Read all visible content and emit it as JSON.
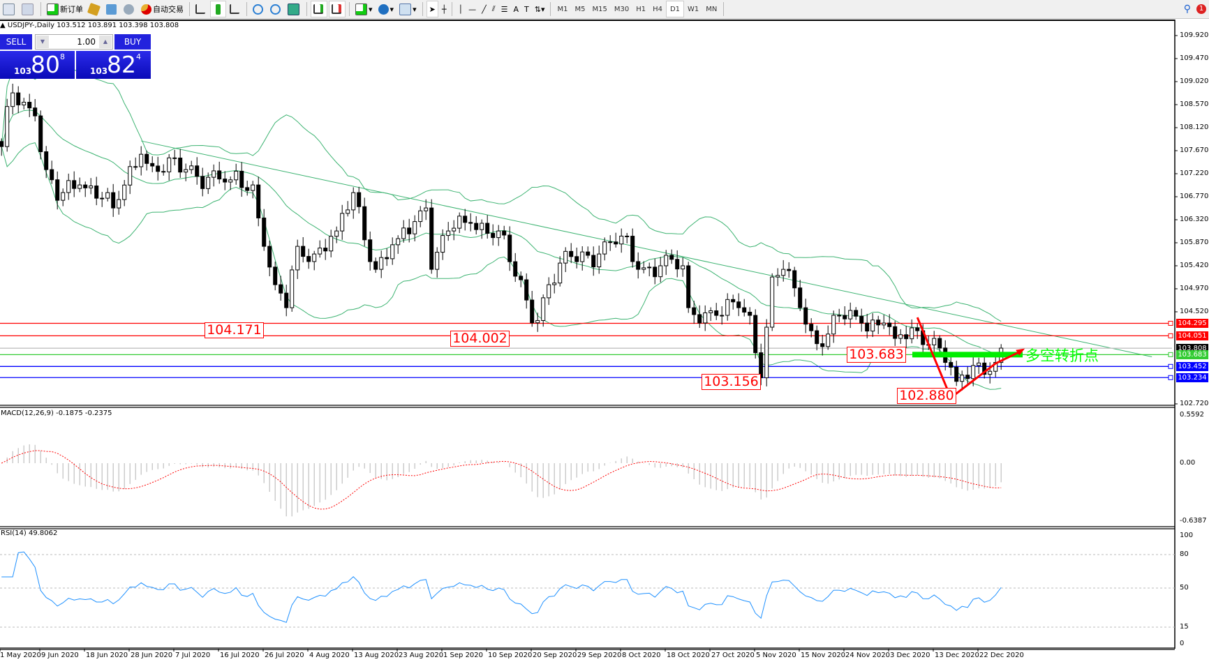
{
  "toolbar": {
    "new_order": "新订单",
    "auto_trading": "自动交易",
    "timeframes": [
      "M1",
      "M5",
      "M15",
      "M30",
      "H1",
      "H4",
      "D1",
      "W1",
      "MN"
    ],
    "active_timeframe": "D1",
    "notification_count": "1"
  },
  "chart": {
    "header": "USDJPY-,Daily  103.512 103.891 103.398 103.808",
    "macd_label": "MACD(12,26,9) -0.1875 -0.2375",
    "rsi_label": "RSI(14) 49.8062"
  },
  "one_click": {
    "sell_label": "SELL",
    "buy_label": "BUY",
    "volume": "1.00",
    "sell_big": "103",
    "sell_main": "80",
    "sell_small": "8",
    "buy_big": "103",
    "buy_main": "82",
    "buy_small": "4"
  },
  "colors": {
    "bands": "#3cb371",
    "trendline": "#3cb371",
    "red": "#ff0000",
    "blue": "#0000ff",
    "green_level": "#33cc33",
    "rsi": "#1e90ff",
    "macd_signal": "#ff0000",
    "macd_hist": "#c0c0c0",
    "annotation_text": "#00ff00"
  },
  "chart_data": {
    "type": "candlestick",
    "symbol": "USDJPY-",
    "timeframe": "Daily",
    "ylim": [
      102.72,
      110.2
    ],
    "price_ticks": [
      "109.920",
      "109.470",
      "109.020",
      "108.570",
      "108.120",
      "107.670",
      "107.220",
      "106.770",
      "106.320",
      "105.870",
      "105.420",
      "104.970",
      "104.520",
      "102.720"
    ],
    "date_ticks": [
      "1 May 2020",
      "9 Jun 2020",
      "18 Jun 2020",
      "28 Jun 2020",
      "7 Jul 2020",
      "16 Jul 2020",
      "26 Jul 2020",
      "4 Aug 2020",
      "13 Aug 2020",
      "23 Aug 2020",
      "1 Sep 2020",
      "10 Sep 2020",
      "20 Sep 2020",
      "29 Sep 2020",
      "8 Oct 2020",
      "18 Oct 2020",
      "27 Oct 2020",
      "5 Nov 2020",
      "15 Nov 2020",
      "24 Nov 2020",
      "3 Dec 2020",
      "13 Dec 2020",
      "22 Dec 2020"
    ],
    "bar_count": 180,
    "close_path": [
      [
        0,
        107.75
      ],
      [
        2,
        108.8
      ],
      [
        6,
        108.35
      ],
      [
        8,
        107.3
      ],
      [
        10,
        106.7
      ],
      [
        14,
        107.0
      ],
      [
        19,
        106.85
      ],
      [
        20,
        106.55
      ],
      [
        25,
        107.6
      ],
      [
        27,
        107.37
      ],
      [
        33,
        107.3
      ],
      [
        37,
        107.15
      ],
      [
        41,
        107.1
      ],
      [
        45,
        107.0
      ],
      [
        47,
        105.8
      ],
      [
        49,
        105.05
      ],
      [
        51,
        104.6
      ],
      [
        53,
        105.8
      ],
      [
        56,
        105.65
      ],
      [
        60,
        106.1
      ],
      [
        63,
        106.85
      ],
      [
        67,
        105.35
      ],
      [
        71,
        105.95
      ],
      [
        76,
        106.55
      ],
      [
        77,
        105.35
      ],
      [
        80,
        106.1
      ],
      [
        84,
        106.25
      ],
      [
        89,
        106.1
      ],
      [
        91,
        105.5
      ],
      [
        94,
        104.75
      ],
      [
        96,
        104.35
      ],
      [
        98,
        105.05
      ],
      [
        102,
        105.6
      ],
      [
        107,
        105.65
      ],
      [
        111,
        106.0
      ],
      [
        114,
        105.35
      ],
      [
        118,
        105.42
      ],
      [
        122,
        105.42
      ],
      [
        123,
        104.6
      ],
      [
        128,
        104.45
      ],
      [
        132,
        104.6
      ],
      [
        134,
        104.45
      ],
      [
        136,
        103.23
      ],
      [
        138,
        105.2
      ],
      [
        140,
        105.35
      ],
      [
        143,
        104.6
      ],
      [
        145,
        104.15
      ],
      [
        147,
        103.84
      ],
      [
        150,
        104.45
      ],
      [
        154,
        104.3
      ],
      [
        158,
        104.3
      ],
      [
        160,
        104.0
      ],
      [
        164,
        104.15
      ],
      [
        167,
        104.0
      ],
      [
        169,
        103.53
      ],
      [
        171,
        103.16
      ],
      [
        174,
        103.47
      ],
      [
        178,
        103.53
      ],
      [
        179,
        103.81
      ]
    ],
    "indicators": [
      "Bollinger Bands(20,2)",
      "MACD(12,26,9)",
      "RSI(14)"
    ],
    "macd_ylim": [
      -0.6387,
      0.5592
    ],
    "macd_ticks": [
      "0.5592",
      "0.00",
      "-0.6387"
    ],
    "rsi_ylim": [
      0,
      100
    ],
    "rsi_ticks": [
      "100",
      "80",
      "50",
      "15",
      "0"
    ],
    "rsi_levels": [
      80,
      50,
      15
    ],
    "trendline": {
      "start": {
        "bar": 25,
        "price": 107.86
      },
      "end": {
        "bar": 206,
        "price": 103.64
      }
    },
    "levels": [
      {
        "price": 104.295,
        "label": "104.295",
        "color": "#ff0000"
      },
      {
        "price": 104.051,
        "label": "104.051",
        "color": "#ff0000"
      },
      {
        "price": 103.808,
        "label": "103.808",
        "color": "#c0c0c0",
        "tag": "#000000"
      },
      {
        "price": 103.683,
        "label": "103.683",
        "color": "#33cc33",
        "tag": "#33cc33"
      },
      {
        "price": 103.452,
        "label": "103.452",
        "color": "#0000ff"
      },
      {
        "price": 103.234,
        "label": "103.234",
        "color": "#0000ff"
      }
    ],
    "annotations": [
      {
        "text": "104.171",
        "bar": 46,
        "price": 104.171
      },
      {
        "text": "104.002",
        "bar": 90,
        "price": 104.002
      },
      {
        "text": "103.156",
        "bar": 135,
        "price": 103.156
      },
      {
        "text": "103.683",
        "bar": 161,
        "price": 103.683
      },
      {
        "text": "102.880",
        "bar": 170,
        "price": 102.88
      }
    ],
    "turning_point_text": "多空转折点",
    "arrow_path": [
      {
        "bar": 164,
        "price": 104.41
      },
      {
        "bar": 170,
        "price": 102.84
      },
      {
        "bar": 178,
        "price": 103.51
      },
      {
        "bar": 182,
        "price": 103.72
      }
    ]
  }
}
